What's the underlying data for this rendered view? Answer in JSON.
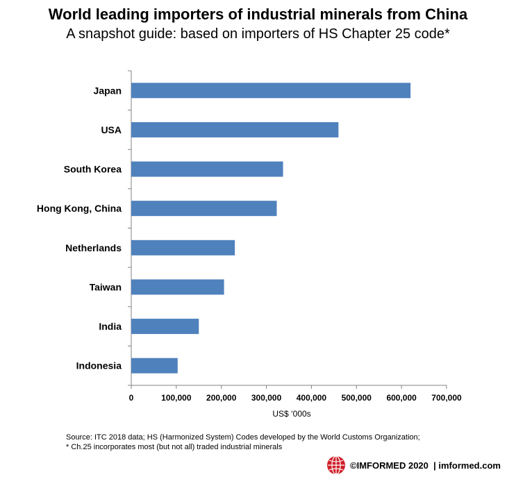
{
  "title": "World leading importers of industrial minerals from China",
  "subtitle": "A snapshot guide: based on importers of HS Chapter 25 code*",
  "chart_data": {
    "type": "bar",
    "orientation": "horizontal",
    "categories": [
      "Japan",
      "USA",
      "South Korea",
      "Hong Kong, China",
      "Netherlands",
      "Taiwan",
      "India",
      "Indonesia"
    ],
    "values": [
      620000,
      460000,
      337000,
      323000,
      230000,
      206000,
      150000,
      103000
    ],
    "xlabel": "US$ ‘000s",
    "xlim": [
      0,
      700000
    ],
    "xticks": [
      0,
      100000,
      200000,
      300000,
      400000,
      500000,
      600000,
      700000
    ],
    "xtick_labels": [
      "0",
      "100,000",
      "200,000",
      "300,000",
      "400,000",
      "500,000",
      "600,000",
      "700,000"
    ],
    "bar_color": "#4f81bd",
    "grid": false
  },
  "source_lines": [
    "Source: ITC 2018 data; HS (Harmonized System) Codes developed by the World Customs Organization;",
    "* Ch.25 incorporates most (but not all) traded industrial minerals"
  ],
  "footer": {
    "brand": "©IMFORMED 2020",
    "separator": "|",
    "url": "imformed.com",
    "logo_color": "#d0202a",
    "logo_icon": "globe-logo-icon"
  }
}
